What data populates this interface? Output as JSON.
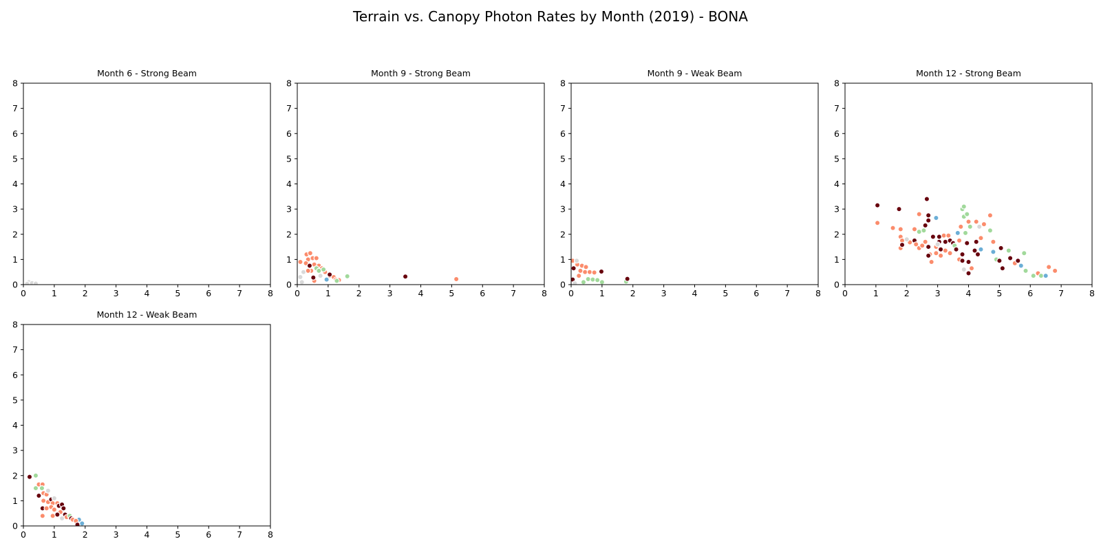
{
  "title": "Terrain vs. Canopy Photon Rates by Month (2019) - BONA",
  "colors": {
    "dark_red": "#67000d",
    "salmon": "#fb8c6c",
    "green": "#a1d99b",
    "blue": "#6baed6",
    "grey": "#d9d9d9"
  },
  "chart_data": [
    {
      "type": "scatter",
      "title": "Month 6 - Strong Beam",
      "xlim": [
        0,
        8
      ],
      "ylim": [
        0,
        8
      ],
      "xticks": [
        "0",
        "1",
        "2",
        "3",
        "4",
        "5",
        "6",
        "7",
        "8"
      ],
      "yticks": [
        "0",
        "1",
        "2",
        "3",
        "4",
        "5",
        "6",
        "7",
        "8"
      ],
      "grid": false,
      "points": [
        {
          "x": 0.18,
          "y": 0.1,
          "c": "grey"
        },
        {
          "x": 0.28,
          "y": 0.06,
          "c": "grey"
        },
        {
          "x": 0.4,
          "y": 0.04,
          "c": "grey"
        },
        {
          "x": 0.12,
          "y": 0.03,
          "c": "grey"
        }
      ]
    },
    {
      "type": "scatter",
      "title": "Month 9 - Strong Beam",
      "xlim": [
        0,
        8
      ],
      "ylim": [
        0,
        8
      ],
      "xticks": [
        "0",
        "1",
        "2",
        "3",
        "4",
        "5",
        "6",
        "7",
        "8"
      ],
      "yticks": [
        "0",
        "1",
        "2",
        "3",
        "4",
        "5",
        "6",
        "7",
        "8"
      ],
      "grid": false,
      "points": [
        {
          "x": 0.1,
          "y": 0.9,
          "c": "salmon"
        },
        {
          "x": 0.3,
          "y": 1.2,
          "c": "salmon"
        },
        {
          "x": 0.42,
          "y": 1.25,
          "c": "salmon"
        },
        {
          "x": 0.35,
          "y": 1.0,
          "c": "salmon"
        },
        {
          "x": 0.5,
          "y": 1.05,
          "c": "salmon"
        },
        {
          "x": 0.62,
          "y": 1.05,
          "c": "salmon"
        },
        {
          "x": 0.28,
          "y": 0.85,
          "c": "salmon"
        },
        {
          "x": 0.55,
          "y": 0.8,
          "c": "salmon"
        },
        {
          "x": 0.7,
          "y": 0.75,
          "c": "salmon"
        },
        {
          "x": 0.8,
          "y": 0.65,
          "c": "salmon"
        },
        {
          "x": 0.45,
          "y": 0.55,
          "c": "salmon"
        },
        {
          "x": 0.35,
          "y": 0.55,
          "c": "salmon"
        },
        {
          "x": 0.9,
          "y": 0.5,
          "c": "salmon"
        },
        {
          "x": 1.05,
          "y": 0.35,
          "c": "salmon"
        },
        {
          "x": 1.18,
          "y": 0.3,
          "c": "salmon"
        },
        {
          "x": 1.25,
          "y": 0.2,
          "c": "salmon"
        },
        {
          "x": 1.35,
          "y": 0.18,
          "c": "salmon"
        },
        {
          "x": 0.55,
          "y": 0.15,
          "c": "salmon"
        },
        {
          "x": 0.62,
          "y": 0.65,
          "c": "green"
        },
        {
          "x": 0.7,
          "y": 0.55,
          "c": "green"
        },
        {
          "x": 0.85,
          "y": 0.6,
          "c": "green"
        },
        {
          "x": 1.62,
          "y": 0.33,
          "c": "green"
        },
        {
          "x": 1.28,
          "y": 0.15,
          "c": "green"
        },
        {
          "x": 0.4,
          "y": 0.75,
          "c": "dark_red"
        },
        {
          "x": 0.52,
          "y": 0.28,
          "c": "dark_red"
        },
        {
          "x": 1.05,
          "y": 0.4,
          "c": "dark_red"
        },
        {
          "x": 0.95,
          "y": 0.2,
          "c": "blue"
        },
        {
          "x": 0.15,
          "y": 0.1,
          "c": "grey"
        },
        {
          "x": 0.2,
          "y": 0.5,
          "c": "grey"
        },
        {
          "x": 0.1,
          "y": 0.3,
          "c": "grey"
        },
        {
          "x": 0.75,
          "y": 0.35,
          "c": "grey"
        },
        {
          "x": 3.5,
          "y": 0.32,
          "c": "dark_red"
        },
        {
          "x": 5.15,
          "y": 0.22,
          "c": "salmon"
        }
      ]
    },
    {
      "type": "scatter",
      "title": "Month 9 - Weak Beam",
      "xlim": [
        0,
        8
      ],
      "ylim": [
        0,
        8
      ],
      "xticks": [
        "0",
        "1",
        "2",
        "3",
        "4",
        "5",
        "6",
        "7",
        "8"
      ],
      "yticks": [
        "0",
        "1",
        "2",
        "3",
        "4",
        "5",
        "6",
        "7",
        "8"
      ],
      "grid": false,
      "points": [
        {
          "x": 0.05,
          "y": 0.95,
          "c": "salmon"
        },
        {
          "x": 0.2,
          "y": 0.8,
          "c": "salmon"
        },
        {
          "x": 0.35,
          "y": 0.75,
          "c": "salmon"
        },
        {
          "x": 0.48,
          "y": 0.7,
          "c": "salmon"
        },
        {
          "x": 0.3,
          "y": 0.55,
          "c": "salmon"
        },
        {
          "x": 0.45,
          "y": 0.5,
          "c": "salmon"
        },
        {
          "x": 0.6,
          "y": 0.5,
          "c": "salmon"
        },
        {
          "x": 0.75,
          "y": 0.48,
          "c": "salmon"
        },
        {
          "x": 0.25,
          "y": 0.35,
          "c": "salmon"
        },
        {
          "x": 0.55,
          "y": 0.22,
          "c": "green"
        },
        {
          "x": 0.7,
          "y": 0.2,
          "c": "green"
        },
        {
          "x": 0.85,
          "y": 0.18,
          "c": "green"
        },
        {
          "x": 1.0,
          "y": 0.1,
          "c": "green"
        },
        {
          "x": 0.4,
          "y": 0.1,
          "c": "green"
        },
        {
          "x": 1.78,
          "y": 0.12,
          "c": "green"
        },
        {
          "x": 0.08,
          "y": 0.65,
          "c": "dark_red"
        },
        {
          "x": 0.05,
          "y": 0.2,
          "c": "dark_red"
        },
        {
          "x": 0.98,
          "y": 0.52,
          "c": "dark_red"
        },
        {
          "x": 1.82,
          "y": 0.23,
          "c": "dark_red"
        },
        {
          "x": 0.12,
          "y": 0.05,
          "c": "grey"
        },
        {
          "x": 0.18,
          "y": 0.95,
          "c": "grey"
        }
      ]
    },
    {
      "type": "scatter",
      "title": "Month 12 - Strong Beam",
      "xlim": [
        0,
        8
      ],
      "ylim": [
        0,
        8
      ],
      "xticks": [
        "0",
        "1",
        "2",
        "3",
        "4",
        "5",
        "6",
        "7",
        "8"
      ],
      "yticks": [
        "0",
        "1",
        "2",
        "3",
        "4",
        "5",
        "6",
        "7",
        "8"
      ],
      "grid": false,
      "points": [
        {
          "x": 1.05,
          "y": 3.15,
          "c": "dark_red"
        },
        {
          "x": 1.05,
          "y": 2.45,
          "c": "salmon"
        },
        {
          "x": 1.75,
          "y": 3.0,
          "c": "dark_red"
        },
        {
          "x": 2.65,
          "y": 3.4,
          "c": "dark_red"
        },
        {
          "x": 1.55,
          "y": 2.25,
          "c": "salmon"
        },
        {
          "x": 1.8,
          "y": 2.2,
          "c": "salmon"
        },
        {
          "x": 1.8,
          "y": 1.9,
          "c": "salmon"
        },
        {
          "x": 1.85,
          "y": 1.75,
          "c": "salmon"
        },
        {
          "x": 1.8,
          "y": 1.45,
          "c": "salmon"
        },
        {
          "x": 1.85,
          "y": 1.58,
          "c": "dark_red"
        },
        {
          "x": 2.1,
          "y": 1.68,
          "c": "salmon"
        },
        {
          "x": 2.25,
          "y": 1.75,
          "c": "dark_red"
        },
        {
          "x": 2.25,
          "y": 2.2,
          "c": "salmon"
        },
        {
          "x": 2.4,
          "y": 2.8,
          "c": "salmon"
        },
        {
          "x": 2.4,
          "y": 2.1,
          "c": "green"
        },
        {
          "x": 2.55,
          "y": 2.15,
          "c": "green"
        },
        {
          "x": 2.6,
          "y": 2.35,
          "c": "dark_red"
        },
        {
          "x": 2.7,
          "y": 2.75,
          "c": "dark_red"
        },
        {
          "x": 2.7,
          "y": 2.55,
          "c": "dark_red"
        },
        {
          "x": 2.3,
          "y": 1.6,
          "c": "salmon"
        },
        {
          "x": 2.4,
          "y": 1.45,
          "c": "salmon"
        },
        {
          "x": 2.5,
          "y": 1.55,
          "c": "salmon"
        },
        {
          "x": 2.6,
          "y": 1.7,
          "c": "salmon"
        },
        {
          "x": 2.7,
          "y": 1.5,
          "c": "dark_red"
        },
        {
          "x": 2.75,
          "y": 1.2,
          "c": "salmon"
        },
        {
          "x": 2.8,
          "y": 0.9,
          "c": "salmon"
        },
        {
          "x": 2.7,
          "y": 1.15,
          "c": "dark_red"
        },
        {
          "x": 2.85,
          "y": 1.9,
          "c": "dark_red"
        },
        {
          "x": 2.95,
          "y": 2.65,
          "c": "blue"
        },
        {
          "x": 2.95,
          "y": 1.5,
          "c": "salmon"
        },
        {
          "x": 2.95,
          "y": 1.25,
          "c": "salmon"
        },
        {
          "x": 3.05,
          "y": 1.9,
          "c": "dark_red"
        },
        {
          "x": 3.05,
          "y": 1.7,
          "c": "dark_red"
        },
        {
          "x": 3.1,
          "y": 1.4,
          "c": "dark_red"
        },
        {
          "x": 3.1,
          "y": 1.15,
          "c": "salmon"
        },
        {
          "x": 3.2,
          "y": 1.95,
          "c": "salmon"
        },
        {
          "x": 3.25,
          "y": 1.7,
          "c": "dark_red"
        },
        {
          "x": 3.25,
          "y": 1.35,
          "c": "salmon"
        },
        {
          "x": 3.35,
          "y": 1.95,
          "c": "salmon"
        },
        {
          "x": 3.4,
          "y": 1.75,
          "c": "dark_red"
        },
        {
          "x": 3.4,
          "y": 1.25,
          "c": "salmon"
        },
        {
          "x": 3.5,
          "y": 1.65,
          "c": "dark_red"
        },
        {
          "x": 3.55,
          "y": 1.55,
          "c": "green"
        },
        {
          "x": 3.6,
          "y": 1.4,
          "c": "dark_red"
        },
        {
          "x": 3.65,
          "y": 2.05,
          "c": "blue"
        },
        {
          "x": 3.7,
          "y": 1.75,
          "c": "salmon"
        },
        {
          "x": 3.7,
          "y": 1.0,
          "c": "salmon"
        },
        {
          "x": 3.75,
          "y": 2.3,
          "c": "salmon"
        },
        {
          "x": 3.8,
          "y": 3.0,
          "c": "green"
        },
        {
          "x": 3.85,
          "y": 3.1,
          "c": "green"
        },
        {
          "x": 3.85,
          "y": 2.7,
          "c": "green"
        },
        {
          "x": 3.8,
          "y": 1.2,
          "c": "dark_red"
        },
        {
          "x": 3.8,
          "y": 0.95,
          "c": "dark_red"
        },
        {
          "x": 3.85,
          "y": 0.6,
          "c": "grey"
        },
        {
          "x": 3.9,
          "y": 2.05,
          "c": "green"
        },
        {
          "x": 3.95,
          "y": 2.8,
          "c": "green"
        },
        {
          "x": 3.95,
          "y": 1.65,
          "c": "dark_red"
        },
        {
          "x": 4.0,
          "y": 2.5,
          "c": "salmon"
        },
        {
          "x": 4.05,
          "y": 2.3,
          "c": "green"
        },
        {
          "x": 4.0,
          "y": 0.9,
          "c": "dark_red"
        },
        {
          "x": 4.0,
          "y": 0.45,
          "c": "dark_red"
        },
        {
          "x": 4.1,
          "y": 0.65,
          "c": "salmon"
        },
        {
          "x": 4.2,
          "y": 1.35,
          "c": "dark_red"
        },
        {
          "x": 4.25,
          "y": 1.7,
          "c": "dark_red"
        },
        {
          "x": 4.25,
          "y": 2.5,
          "c": "salmon"
        },
        {
          "x": 4.3,
          "y": 1.2,
          "c": "dark_red"
        },
        {
          "x": 4.35,
          "y": 2.3,
          "c": "grey"
        },
        {
          "x": 4.4,
          "y": 1.85,
          "c": "salmon"
        },
        {
          "x": 4.4,
          "y": 1.4,
          "c": "blue"
        },
        {
          "x": 4.5,
          "y": 2.4,
          "c": "salmon"
        },
        {
          "x": 4.7,
          "y": 2.75,
          "c": "salmon"
        },
        {
          "x": 4.7,
          "y": 2.15,
          "c": "green"
        },
        {
          "x": 4.8,
          "y": 1.7,
          "c": "salmon"
        },
        {
          "x": 4.8,
          "y": 1.3,
          "c": "blue"
        },
        {
          "x": 4.9,
          "y": 1.0,
          "c": "green"
        },
        {
          "x": 5.0,
          "y": 0.95,
          "c": "dark_red"
        },
        {
          "x": 5.05,
          "y": 1.45,
          "c": "dark_red"
        },
        {
          "x": 5.1,
          "y": 0.65,
          "c": "dark_red"
        },
        {
          "x": 5.3,
          "y": 1.35,
          "c": "green"
        },
        {
          "x": 5.35,
          "y": 1.05,
          "c": "dark_red"
        },
        {
          "x": 5.5,
          "y": 0.85,
          "c": "salmon"
        },
        {
          "x": 5.6,
          "y": 0.95,
          "c": "dark_red"
        },
        {
          "x": 5.7,
          "y": 0.75,
          "c": "blue"
        },
        {
          "x": 5.8,
          "y": 1.25,
          "c": "green"
        },
        {
          "x": 5.85,
          "y": 0.55,
          "c": "green"
        },
        {
          "x": 6.1,
          "y": 0.35,
          "c": "green"
        },
        {
          "x": 6.25,
          "y": 0.45,
          "c": "salmon"
        },
        {
          "x": 6.35,
          "y": 0.35,
          "c": "green"
        },
        {
          "x": 6.5,
          "y": 0.35,
          "c": "blue"
        },
        {
          "x": 6.6,
          "y": 0.7,
          "c": "salmon"
        },
        {
          "x": 6.8,
          "y": 0.55,
          "c": "salmon"
        },
        {
          "x": 2.0,
          "y": 1.8,
          "c": "grey"
        },
        {
          "x": 3.0,
          "y": 1.6,
          "c": "grey"
        }
      ]
    },
    {
      "type": "scatter",
      "title": "Month 12 - Weak Beam",
      "xlim": [
        0,
        8
      ],
      "ylim": [
        0,
        8
      ],
      "xticks": [
        "0",
        "1",
        "2",
        "3",
        "4",
        "5",
        "6",
        "7",
        "8"
      ],
      "yticks": [
        "0",
        "1",
        "2",
        "3",
        "4",
        "5",
        "6",
        "7",
        "8"
      ],
      "grid": false,
      "points": [
        {
          "x": 0.2,
          "y": 1.95,
          "c": "dark_red"
        },
        {
          "x": 0.4,
          "y": 2.0,
          "c": "green"
        },
        {
          "x": 0.4,
          "y": 1.5,
          "c": "green"
        },
        {
          "x": 0.5,
          "y": 1.65,
          "c": "salmon"
        },
        {
          "x": 0.62,
          "y": 1.65,
          "c": "salmon"
        },
        {
          "x": 0.6,
          "y": 1.5,
          "c": "green"
        },
        {
          "x": 0.5,
          "y": 1.2,
          "c": "dark_red"
        },
        {
          "x": 0.65,
          "y": 1.3,
          "c": "salmon"
        },
        {
          "x": 0.75,
          "y": 1.25,
          "c": "salmon"
        },
        {
          "x": 0.8,
          "y": 1.4,
          "c": "grey"
        },
        {
          "x": 0.65,
          "y": 1.0,
          "c": "salmon"
        },
        {
          "x": 0.8,
          "y": 0.95,
          "c": "salmon"
        },
        {
          "x": 0.9,
          "y": 1.05,
          "c": "dark_red"
        },
        {
          "x": 0.95,
          "y": 0.9,
          "c": "salmon"
        },
        {
          "x": 0.62,
          "y": 0.7,
          "c": "dark_red"
        },
        {
          "x": 0.75,
          "y": 0.7,
          "c": "salmon"
        },
        {
          "x": 0.9,
          "y": 0.75,
          "c": "salmon"
        },
        {
          "x": 1.0,
          "y": 0.65,
          "c": "salmon"
        },
        {
          "x": 1.1,
          "y": 0.9,
          "c": "salmon"
        },
        {
          "x": 1.15,
          "y": 0.8,
          "c": "dark_red"
        },
        {
          "x": 1.25,
          "y": 0.85,
          "c": "dark_red"
        },
        {
          "x": 1.3,
          "y": 0.7,
          "c": "dark_red"
        },
        {
          "x": 1.2,
          "y": 0.55,
          "c": "salmon"
        },
        {
          "x": 1.35,
          "y": 0.45,
          "c": "dark_red"
        },
        {
          "x": 0.95,
          "y": 0.4,
          "c": "salmon"
        },
        {
          "x": 0.62,
          "y": 0.4,
          "c": "salmon"
        },
        {
          "x": 1.1,
          "y": 0.45,
          "c": "dark_red"
        },
        {
          "x": 1.4,
          "y": 0.35,
          "c": "salmon"
        },
        {
          "x": 1.5,
          "y": 0.4,
          "c": "green"
        },
        {
          "x": 1.55,
          "y": 0.3,
          "c": "dark_red"
        },
        {
          "x": 1.6,
          "y": 0.25,
          "c": "salmon"
        },
        {
          "x": 1.8,
          "y": 0.25,
          "c": "blue"
        },
        {
          "x": 1.7,
          "y": 0.2,
          "c": "salmon"
        },
        {
          "x": 1.75,
          "y": 0.05,
          "c": "dark_red"
        },
        {
          "x": 1.9,
          "y": 0.1,
          "c": "blue"
        },
        {
          "x": 1.25,
          "y": 0.3,
          "c": "grey"
        },
        {
          "x": 1.0,
          "y": 1.1,
          "c": "grey"
        }
      ]
    }
  ]
}
